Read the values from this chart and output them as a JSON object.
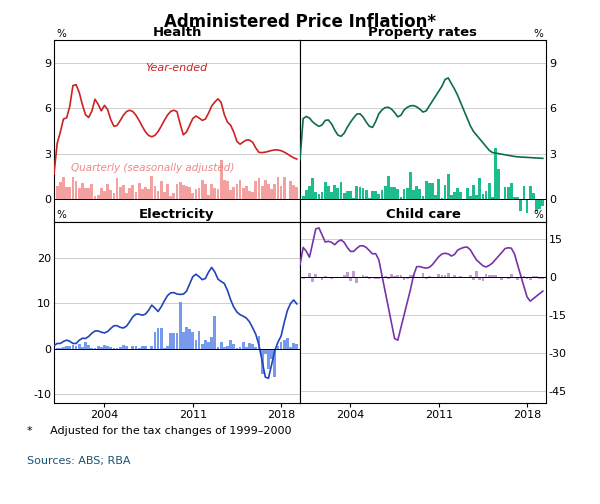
{
  "title": "Administered Price Inflation*",
  "footnote": "*     Adjusted for the tax changes of 1999–2000",
  "sources": "Sources: ABS; RBA",
  "health_ylim": [
    -1.5,
    10.5
  ],
  "health_yticks": [
    0,
    3,
    6,
    9
  ],
  "property_ylim": [
    -1.5,
    10.5
  ],
  "property_yticks": [
    0,
    3,
    6,
    9
  ],
  "electricity_ylim": [
    -12,
    28
  ],
  "electricity_yticks": [
    -10,
    0,
    10,
    20
  ],
  "childcare_ylim": [
    -50,
    22
  ],
  "childcare_yticks": [
    -45,
    -30,
    -15,
    0,
    15
  ],
  "health_bar_color": "#F2A0A0",
  "health_line_color": "#CC2222",
  "property_bar_color": "#1EBD8E",
  "property_line_color": "#0E6B50",
  "electricity_bar_color": "#7799EE",
  "electricity_line_color": "#2244BB",
  "childcare_bar_color": "#C0A0CC",
  "childcare_line_color": "#7733AA",
  "grid_color": "#BBBBBB",
  "background_color": "#FFFFFF",
  "xtick_years": [
    2004,
    2011,
    2018
  ],
  "xlim": [
    2000.0,
    2019.5
  ]
}
